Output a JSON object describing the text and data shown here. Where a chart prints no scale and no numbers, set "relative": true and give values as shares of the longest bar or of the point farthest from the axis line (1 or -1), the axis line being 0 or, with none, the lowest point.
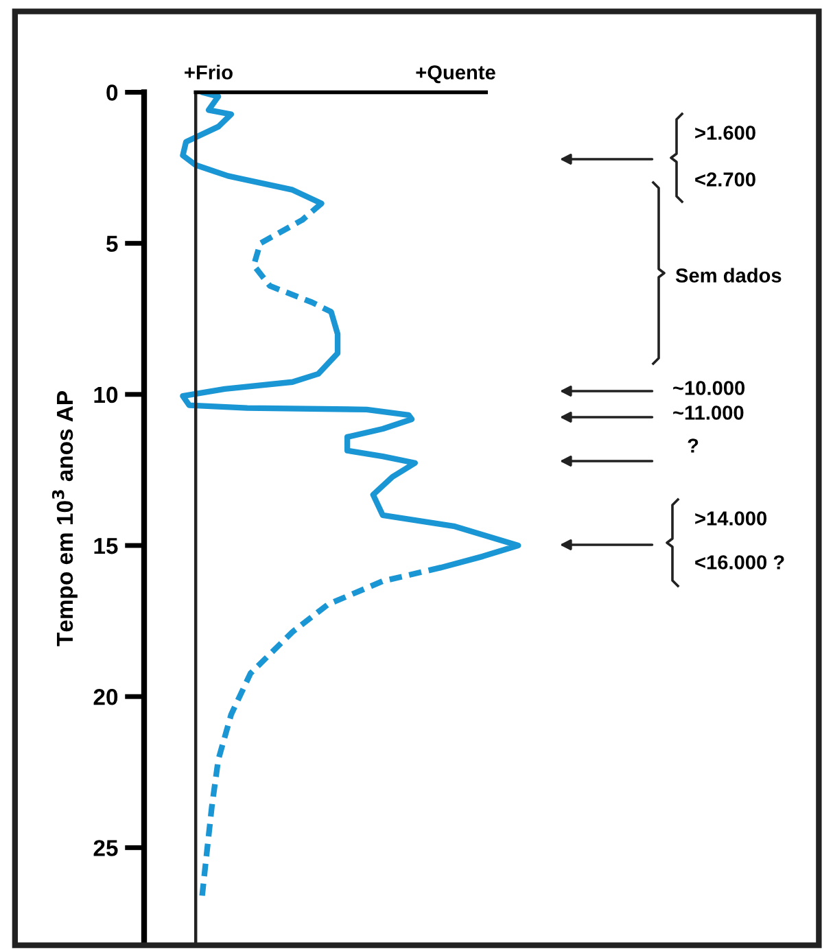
{
  "chart_data": {
    "type": "line",
    "orientation": "horizontal",
    "relative": true,
    "ylabel": "Tempo em 10$^{3}$ anos AP",
    "ylim": [
      28.2,
      0
    ],
    "yticks": [
      0,
      5,
      10,
      15,
      20,
      25
    ],
    "tick_labels": "y",
    "series": [
      {
        "color": "#1a96d4",
        "line_style": "solid",
        "x": [
          0,
          0.14,
          0.59,
          0.73,
          1.14,
          1.64,
          2.09,
          2.41,
          2.77,
          3.23,
          3.68
        ],
        "values": [
          0.02,
          0.07,
          0.04,
          0.11,
          0.07,
          -0.03,
          -0.04,
          0,
          0.1,
          0.3,
          0.39
        ]
      },
      {
        "color": "#1a96d4",
        "line_style": "dashed",
        "x": [
          3.68,
          4.23,
          5.0,
          5.73,
          6.41,
          6.95,
          7.27
        ],
        "values": [
          0.39,
          0.33,
          0.2,
          0.18,
          0.23,
          0.36,
          0.42
        ]
      },
      {
        "color": "#1a96d4",
        "line_style": "solid",
        "x": [
          7.27,
          8.0,
          8.64,
          9.32,
          9.59,
          9.82,
          10.05,
          10.36,
          10.45,
          10.5,
          10.68,
          10.82,
          11.14,
          11.41,
          11.86,
          12.05,
          12.27,
          12.73,
          13.32,
          14.0,
          14.36,
          15.0,
          15.36,
          15.73
        ],
        "values": [
          0.42,
          0.44,
          0.44,
          0.38,
          0.3,
          0.09,
          -0.04,
          -0.02,
          0.16,
          0.53,
          0.66,
          0.67,
          0.58,
          0.47,
          0.47,
          0.58,
          0.68,
          0.61,
          0.55,
          0.58,
          0.8,
          1.0,
          0.89,
          0.76
        ]
      },
      {
        "color": "#1a96d4",
        "line_style": "dashed",
        "x": [
          15.73,
          16.18,
          16.95,
          17.86,
          19.23,
          20.59,
          22.09,
          23.64,
          25.59,
          26.59
        ],
        "values": [
          0.76,
          0.58,
          0.41,
          0.3,
          0.17,
          0.11,
          0.07,
          0.05,
          0.03,
          0.02
        ]
      }
    ],
    "annotations": [
      ">1.600",
      "<2.700",
      "Sem dados",
      "~10.000",
      "~11.000",
      "?",
      ">14.000",
      "<16.000 ?",
      "+Frio",
      "+Quente"
    ]
  }
}
